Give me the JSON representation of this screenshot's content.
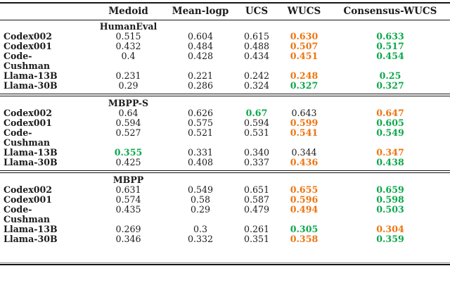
{
  "colors": {
    "best": "#0ca84b",
    "second": "#ee7511",
    "text": "#1c1c1c",
    "rule": "#161616"
  },
  "legend_semantics": {
    "best": "best method (green)",
    "second": "second-best method (orange)"
  },
  "table": {
    "header": [
      "",
      "Medoid",
      "Mean-logp",
      "UCS",
      "WUCS",
      "Consensus-WUCS"
    ],
    "sections": [
      {
        "name": "HumanEval",
        "rows": [
          {
            "label": "Codex002",
            "values": [
              "0.515",
              "0.604",
              "0.615",
              "0.630",
              "0.633"
            ],
            "colors": [
              null,
              null,
              null,
              "second",
              "best"
            ]
          },
          {
            "label": "Codex001",
            "values": [
              "0.432",
              "0.484",
              "0.488",
              "0.507",
              "0.517"
            ],
            "colors": [
              null,
              null,
              null,
              "second",
              "best"
            ]
          },
          {
            "label": "Code-\nCushman",
            "values": [
              "0.4",
              "0.428",
              "0.434",
              "0.451",
              "0.454"
            ],
            "colors": [
              null,
              null,
              null,
              "second",
              "best"
            ]
          },
          {
            "label": "Llama-13B",
            "values": [
              "0.231",
              "0.221",
              "0.242",
              "0.248",
              "0.25"
            ],
            "colors": [
              null,
              null,
              null,
              "second",
              "best"
            ]
          },
          {
            "label": "Llama-30B",
            "values": [
              "0.29",
              "0.286",
              "0.324",
              "0.327",
              "0.327"
            ],
            "colors": [
              null,
              null,
              null,
              "best",
              "best"
            ]
          }
        ]
      },
      {
        "name": "MBPP-S",
        "rows": [
          {
            "label": "Codex002",
            "values": [
              "0.64",
              "0.626",
              "0.67",
              "0.643",
              "0.647"
            ],
            "colors": [
              null,
              null,
              "best",
              null,
              "second"
            ]
          },
          {
            "label": "Codex001",
            "values": [
              "0.594",
              "0.575",
              "0.594",
              "0.599",
              "0.605"
            ],
            "colors": [
              null,
              null,
              null,
              "second",
              "best"
            ]
          },
          {
            "label": "Code-\nCushman",
            "values": [
              "0.527",
              "0.521",
              "0.531",
              "0.541",
              "0.549"
            ],
            "colors": [
              null,
              null,
              null,
              "second",
              "best"
            ]
          },
          {
            "label": "Llama-13B",
            "values": [
              "0.355",
              "0.331",
              "0.340",
              "0.344",
              "0.347"
            ],
            "colors": [
              "best",
              null,
              null,
              null,
              "second"
            ]
          },
          {
            "label": "Llama-30B",
            "values": [
              "0.425",
              "0.408",
              "0.337",
              "0.436",
              "0.438"
            ],
            "colors": [
              null,
              null,
              null,
              "second",
              "best"
            ]
          }
        ]
      },
      {
        "name": "MBPP",
        "rows": [
          {
            "label": "Codex002",
            "values": [
              "0.631",
              "0.549",
              "0.651",
              "0.655",
              "0.659"
            ],
            "colors": [
              null,
              null,
              null,
              "second",
              "best"
            ]
          },
          {
            "label": "Codex001",
            "values": [
              "0.574",
              "0.58",
              "0.587",
              "0.596",
              "0.598"
            ],
            "colors": [
              null,
              null,
              null,
              "second",
              "best"
            ]
          },
          {
            "label": "Code-\nCushman",
            "values": [
              "0.435",
              "0.29",
              "0.479",
              "0.494",
              "0.503"
            ],
            "colors": [
              null,
              null,
              null,
              "second",
              "best"
            ]
          },
          {
            "label": "Llama-13B",
            "values": [
              "0.269",
              "0.3",
              "0.261",
              "0.305",
              "0.304"
            ],
            "colors": [
              null,
              null,
              null,
              "best",
              "second"
            ]
          },
          {
            "label": "Llama-30B",
            "values": [
              "0.346",
              "0.332",
              "0.351",
              "0.358",
              "0.359"
            ],
            "colors": [
              null,
              null,
              null,
              "second",
              "best"
            ]
          }
        ]
      }
    ]
  }
}
